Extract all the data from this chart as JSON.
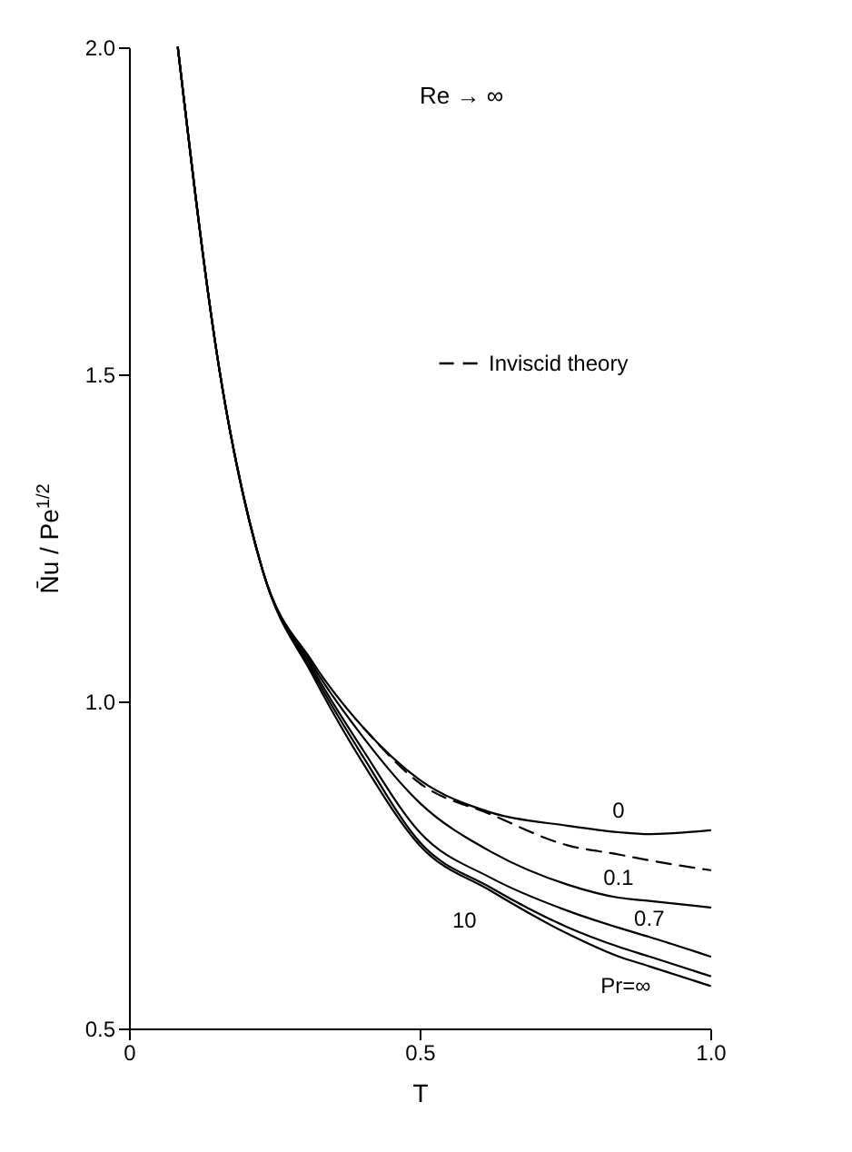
{
  "chart_data": {
    "type": "line",
    "xlabel": "T",
    "ylabel": "N̄u / Pe$^{1/2}$",
    "annotations": [
      "Re → ∞"
    ],
    "x": [
      0.084,
      0.155,
      0.23,
      0.316,
      0.403,
      0.5,
      0.623,
      0.754,
      0.842,
      0.895,
      1.0
    ],
    "series": [
      {
        "name": "0",
        "color": "#000000",
        "values": [
          2.0,
          1.51,
          1.2,
          1.06,
          0.96,
          0.88,
          0.83,
          0.81,
          0.8,
          0.797,
          0.803
        ]
      },
      {
        "name": "Inviscid theory",
        "color": "#000000",
        "line_style": "dashed",
        "values": [
          null,
          null,
          null,
          null,
          0.96,
          0.875,
          0.827,
          0.78,
          0.766,
          0.757,
          0.742
        ]
      },
      {
        "name": "0.1",
        "color": "#000000",
        "values": [
          2.0,
          1.51,
          1.2,
          1.055,
          0.945,
          0.845,
          0.77,
          0.72,
          0.7,
          0.695,
          0.685
        ]
      },
      {
        "name": "0.7",
        "color": "#000000",
        "values": [
          2.0,
          1.51,
          1.2,
          1.05,
          0.925,
          0.8,
          0.73,
          0.68,
          0.654,
          0.64,
          0.61
        ]
      },
      {
        "name": "10",
        "color": "#000000",
        "values": [
          2.0,
          1.51,
          1.2,
          1.045,
          0.915,
          0.785,
          0.715,
          0.655,
          0.625,
          0.61,
          0.58
        ]
      },
      {
        "name": "Pr=∞",
        "color": "#000000",
        "values": [
          2.0,
          1.51,
          1.2,
          1.04,
          0.905,
          0.78,
          0.71,
          0.645,
          0.61,
          0.595,
          0.565
        ]
      }
    ],
    "xlim": [
      0,
      1.0
    ],
    "xticks": [
      0,
      0.5,
      {
        "value": 1.0,
        "label": "1.0"
      }
    ],
    "ylim": [
      0.5,
      2.0
    ],
    "yticks": [
      0.5,
      {
        "value": 1.0,
        "label": "1.0"
      },
      1.5,
      {
        "value": 2.0,
        "label": "2.0"
      }
    ],
    "grid": false,
    "legend": "top right",
    "marker": "none",
    "line_style": "solid"
  }
}
